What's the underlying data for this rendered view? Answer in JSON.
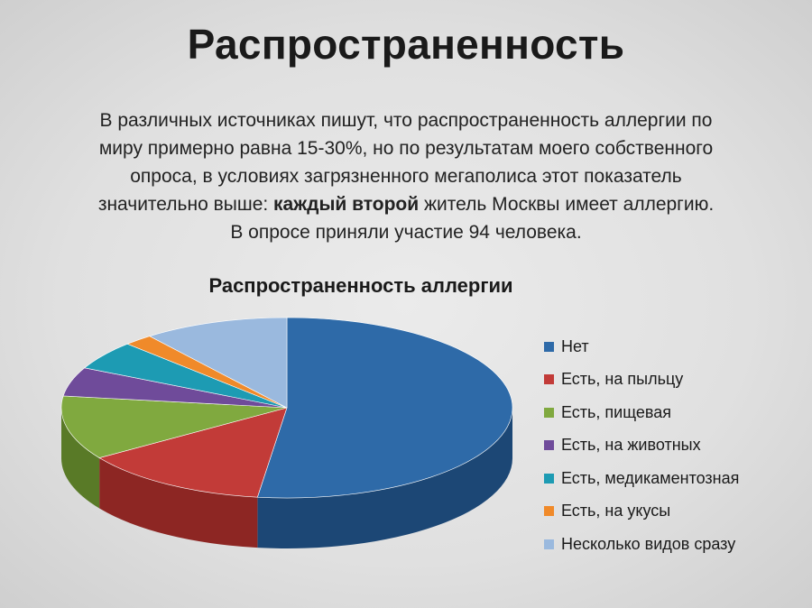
{
  "slide": {
    "title": "Распространенность",
    "intro_line1": "В различных источниках пишут, что распространенность аллергии по",
    "intro_line2": "миру примерно равна 15-30%, но по результатам моего собственного",
    "intro_line3": "опроса, в условиях загрязненного мегаполиса этот показатель",
    "intro_line4_pre": "значительно выше: ",
    "intro_line4_bold": "каждый второй",
    "intro_line4_post": " житель Москвы имеет аллергию.",
    "intro_line5": "В опросе приняли участие 94 человека."
  },
  "chart_data": {
    "type": "pie",
    "title": "Распространенность аллергии",
    "legend_position": "right",
    "categories": [
      "Нет",
      "Есть, на пыльцу",
      "Есть, пищевая",
      "Есть, на животных",
      "Есть, медикаментозная",
      "Есть, на укусы",
      "Несколько видов сразу"
    ],
    "values": [
      50,
      13,
      11,
      5,
      5,
      2,
      10
    ],
    "colors": [
      "#2e6aa8",
      "#c23b38",
      "#80a93f",
      "#6f4b9a",
      "#1d9bb3",
      "#f08a2a",
      "#9ab9de"
    ],
    "side_colors": [
      "#1c4775",
      "#8d2623",
      "#597a27",
      "#4d3270",
      "#11707f",
      "#b3621a",
      "#6f8fb5"
    ]
  }
}
